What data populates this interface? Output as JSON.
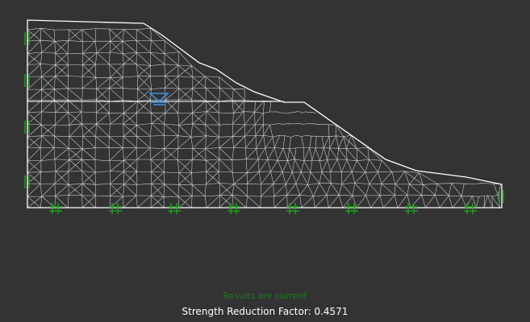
{
  "canvas": {
    "background_color": "#333333",
    "mesh_color": "#e8e8e8",
    "boundary_color": "#ffffff",
    "support_color": "#1e9c1e",
    "water_marker_color": "#3a8fe0",
    "water_marker_icon": "water-table-icon",
    "fixed_support_icon": "pin-support-icon",
    "roller_support_icon": "roller-support-icon"
  },
  "status": {
    "message": "Results are current",
    "message_color": "#1f7a1f",
    "srf_label": "Strength Reduction Factor:",
    "srf_value": "0.4571"
  }
}
